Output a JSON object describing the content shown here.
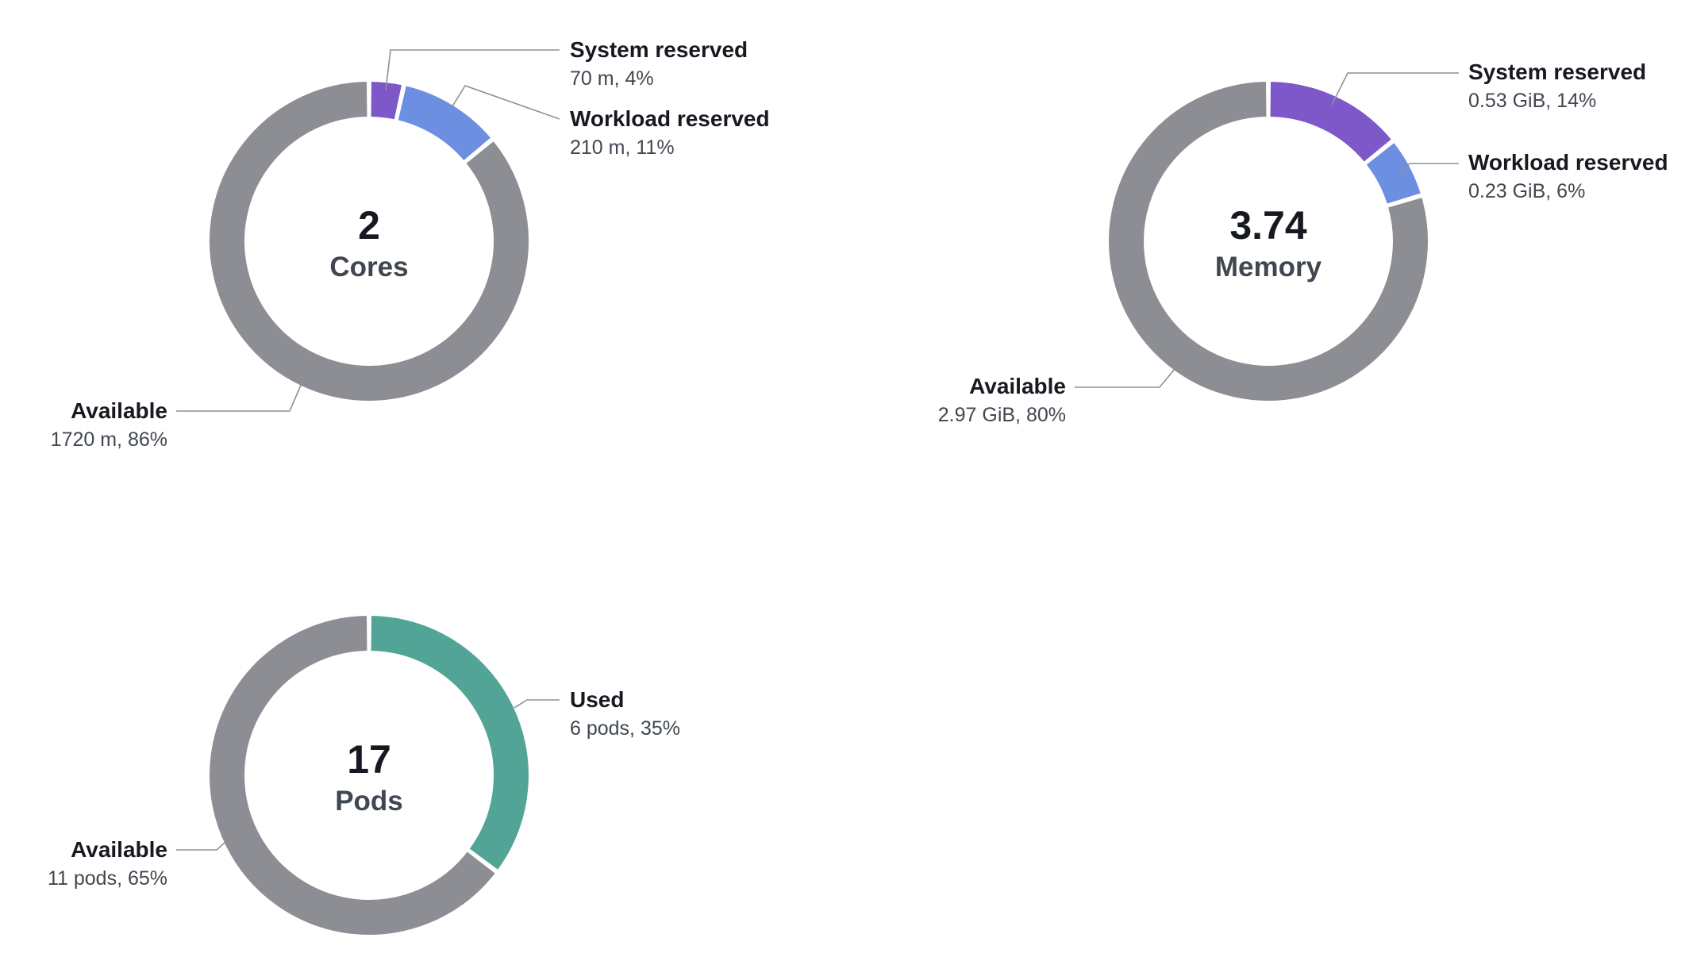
{
  "colors": {
    "available": "#8d8e93",
    "system_reserved": "#7e57c9",
    "workload_reserved": "#6d8fe2",
    "used": "#52a596"
  },
  "chart_data": [
    {
      "id": "cores",
      "type": "pie",
      "variant": "donut",
      "center_value": "2",
      "center_unit": "Cores",
      "series": [
        {
          "name": "System reserved",
          "label": "70 m, 4%",
          "value": 70,
          "percent": 4,
          "color_key": "system_reserved"
        },
        {
          "name": "Workload reserved",
          "label": "210 m, 11%",
          "value": 210,
          "percent": 11,
          "color_key": "workload_reserved"
        },
        {
          "name": "Available",
          "label": "1720 m, 86%",
          "value": 1720,
          "percent": 86,
          "color_key": "available"
        }
      ]
    },
    {
      "id": "memory",
      "type": "pie",
      "variant": "donut",
      "center_value": "3.74",
      "center_unit": "Memory",
      "series": [
        {
          "name": "System reserved",
          "label": "0.53 GiB, 14%",
          "value": 0.53,
          "percent": 14,
          "color_key": "system_reserved"
        },
        {
          "name": "Workload reserved",
          "label": "0.23 GiB, 6%",
          "value": 0.23,
          "percent": 6,
          "color_key": "workload_reserved"
        },
        {
          "name": "Available",
          "label": "2.97 GiB, 80%",
          "value": 2.97,
          "percent": 80,
          "color_key": "available"
        }
      ]
    },
    {
      "id": "pods",
      "type": "pie",
      "variant": "donut",
      "center_value": "17",
      "center_unit": "Pods",
      "series": [
        {
          "name": "Used",
          "label": "6 pods, 35%",
          "value": 6,
          "percent": 35,
          "color_key": "used"
        },
        {
          "name": "Available",
          "label": "11 pods, 65%",
          "value": 11,
          "percent": 65,
          "color_key": "available"
        }
      ]
    }
  ]
}
